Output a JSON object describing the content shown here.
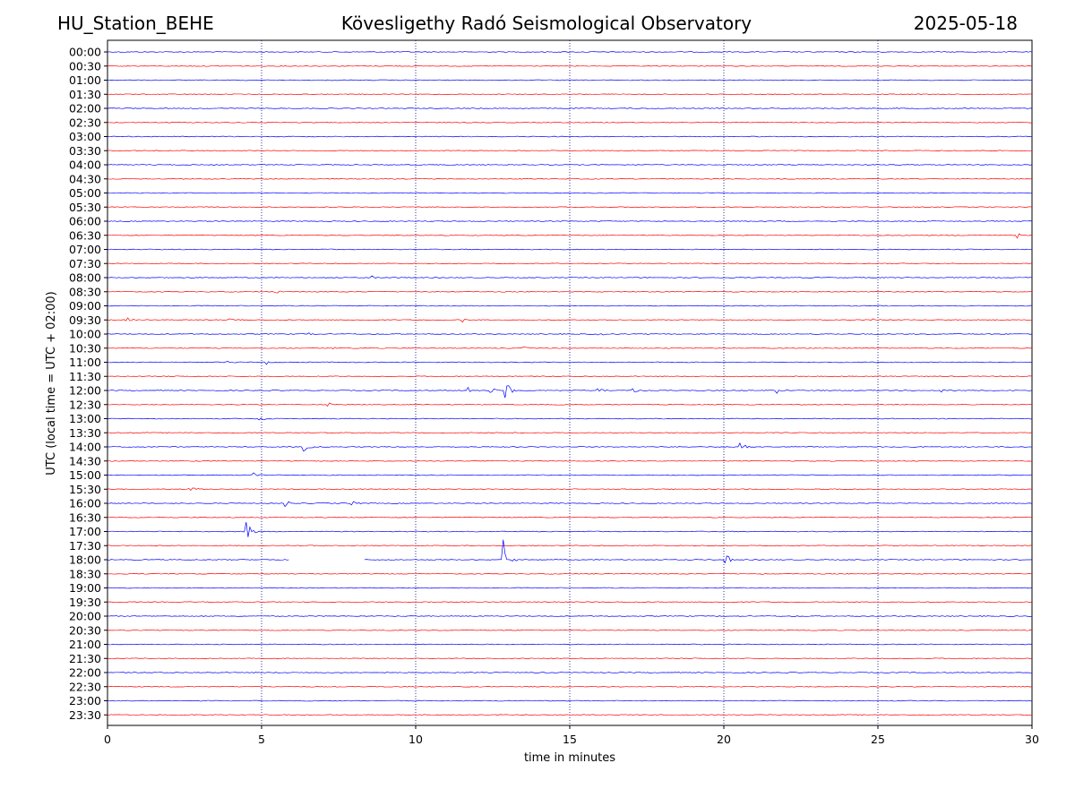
{
  "header": {
    "station": "HU_Station_BEHE",
    "observatory": "Kövesligethy Radó Seismological Observatory",
    "date": "2025-05-18"
  },
  "colors": {
    "even_trace": "#0000ff",
    "odd_trace": "#ff0000",
    "grid": "#000080"
  },
  "chart_data": {
    "type": "line",
    "title": "Kövesligethy Radó Seismological Observatory",
    "xlabel": "time in minutes",
    "ylabel": "UTC (local time = UTC + 02:00)",
    "xlim": [
      0,
      30
    ],
    "xticks": [
      0,
      5,
      10,
      15,
      20,
      25,
      30
    ],
    "vertical_gridlines": [
      5,
      10,
      15,
      20,
      25
    ],
    "rows": [
      "00:00",
      "00:30",
      "01:00",
      "01:30",
      "02:00",
      "02:30",
      "03:00",
      "03:30",
      "04:00",
      "04:30",
      "05:00",
      "05:30",
      "06:00",
      "06:30",
      "07:00",
      "07:30",
      "08:00",
      "08:30",
      "09:00",
      "09:30",
      "10:00",
      "10:30",
      "11:00",
      "11:30",
      "12:00",
      "12:30",
      "13:00",
      "13:30",
      "14:00",
      "14:30",
      "15:00",
      "15:30",
      "16:00",
      "16:30",
      "17:00",
      "17:30",
      "18:00",
      "18:30",
      "19:00",
      "19:30",
      "20:00",
      "20:30",
      "21:00",
      "21:30",
      "22:00",
      "22:30",
      "23:00",
      "23:30"
    ],
    "events": [
      {
        "row": "09:30",
        "minute": 0.6,
        "amplitude": 0.3
      },
      {
        "row": "09:30",
        "minute": 3.95,
        "amplitude": 0.2
      },
      {
        "row": "09:30",
        "minute": 11.5,
        "amplitude": 0.2
      },
      {
        "row": "09:30",
        "minute": 24.8,
        "amplitude": 0.2
      },
      {
        "row": "10:00",
        "minute": 6.5,
        "amplitude": 0.2
      },
      {
        "row": "10:00",
        "minute": 15.9,
        "amplitude": 0.2
      },
      {
        "row": "10:30",
        "minute": 7.2,
        "amplitude": 0.2
      },
      {
        "row": "10:30",
        "minute": 13.5,
        "amplitude": 0.25
      },
      {
        "row": "11:00",
        "minute": 3.8,
        "amplitude": 0.25
      },
      {
        "row": "11:00",
        "minute": 5.1,
        "amplitude": 0.3
      },
      {
        "row": "12:00",
        "minute": 12.9,
        "amplitude": 1.0
      },
      {
        "row": "12:00",
        "minute": 12.4,
        "amplitude": 0.3
      },
      {
        "row": "12:00",
        "minute": 11.7,
        "amplitude": 0.25
      },
      {
        "row": "12:00",
        "minute": 15.9,
        "amplitude": 0.25
      },
      {
        "row": "12:00",
        "minute": 17.0,
        "amplitude": 0.25
      },
      {
        "row": "12:00",
        "minute": 21.7,
        "amplitude": 0.35
      },
      {
        "row": "12:00",
        "minute": 27.0,
        "amplitude": 0.35
      },
      {
        "row": "12:30",
        "minute": 7.1,
        "amplitude": 0.2
      },
      {
        "row": "13:00",
        "minute": 4.9,
        "amplitude": 0.35
      },
      {
        "row": "14:00",
        "minute": 6.3,
        "amplitude": 0.55
      },
      {
        "row": "14:00",
        "minute": 20.5,
        "amplitude": 0.75
      },
      {
        "row": "15:00",
        "minute": 4.7,
        "amplitude": 0.25
      },
      {
        "row": "15:30",
        "minute": 2.6,
        "amplitude": 0.4
      },
      {
        "row": "16:00",
        "minute": 5.7,
        "amplitude": 0.45
      },
      {
        "row": "16:00",
        "minute": 7.9,
        "amplitude": 0.2
      },
      {
        "row": "17:00",
        "minute": 4.5,
        "amplitude": 1.0
      },
      {
        "row": "18:00",
        "minute": 12.8,
        "amplitude": 2.0
      },
      {
        "row": "18:00",
        "minute": 20.0,
        "amplitude": 0.8
      },
      {
        "row": "18:30",
        "minute": 21.0,
        "amplitude": 0.2
      },
      {
        "row": "06:30",
        "minute": 29.5,
        "amplitude": 0.2
      },
      {
        "row": "08:00",
        "minute": 8.5,
        "amplitude": 0.2
      },
      {
        "row": "08:30",
        "minute": 5.4,
        "amplitude": 0.2
      }
    ],
    "gaps": [
      {
        "row": "18:00",
        "from_minute": 5.9,
        "to_minute": 8.3
      }
    ]
  }
}
